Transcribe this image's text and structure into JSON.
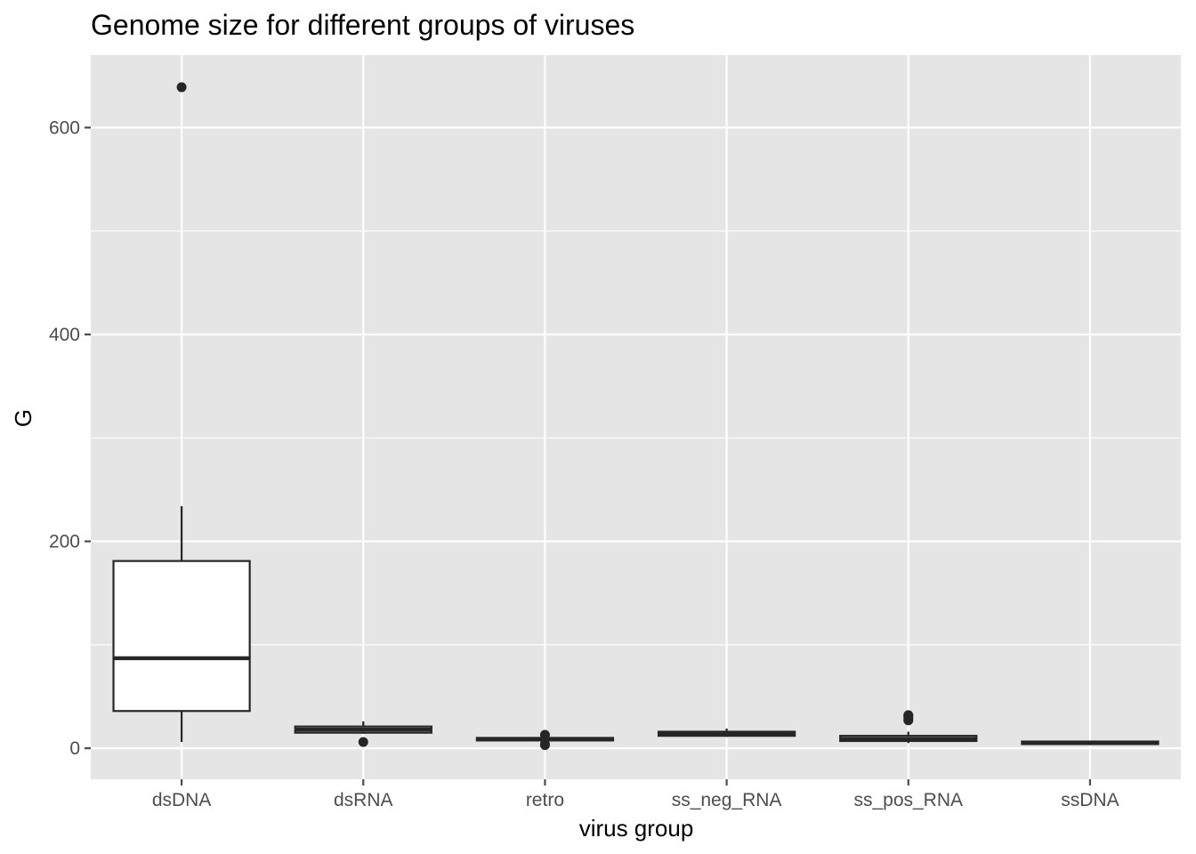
{
  "chart_data": {
    "type": "boxplot",
    "title": "Genome size for different groups of viruses",
    "xlabel": "virus group",
    "ylabel": "G",
    "ylim": [
      -30,
      670
    ],
    "yticks": [
      0,
      200,
      400,
      600
    ],
    "grid": true,
    "legend": "none",
    "categories": [
      "dsDNA",
      "dsRNA",
      "retro",
      "ss_neg_RNA",
      "ss_pos_RNA",
      "ssDNA"
    ],
    "boxes": [
      {
        "category": "dsDNA",
        "whisker_low": 6,
        "q1": 36,
        "median": 87,
        "q3": 181,
        "whisker_high": 234,
        "outliers": [
          639
        ]
      },
      {
        "category": "dsRNA",
        "whisker_low": 14,
        "q1": 15,
        "median": 18,
        "q3": 21,
        "whisker_high": 26,
        "outliers": [
          6
        ]
      },
      {
        "category": "retro",
        "whisker_low": 7,
        "q1": 7.5,
        "median": 9,
        "q3": 10,
        "whisker_high": 11,
        "outliers": [
          3,
          4,
          13
        ]
      },
      {
        "category": "ss_neg_RNA",
        "whisker_low": 11,
        "q1": 12,
        "median": 14,
        "q3": 16,
        "whisker_high": 19,
        "outliers": []
      },
      {
        "category": "ss_pos_RNA",
        "whisker_low": 5,
        "q1": 7,
        "median": 9,
        "q3": 12,
        "whisker_high": 16,
        "outliers": [
          27,
          29,
          31,
          32
        ]
      },
      {
        "category": "ssDNA",
        "whisker_low": 3,
        "q1": 4,
        "median": 5,
        "q3": 6.5,
        "whisker_high": 7,
        "outliers": []
      }
    ],
    "colors": {
      "panel": "#e5e5e5",
      "grid": "#ffffff",
      "box_fill": "#ffffff",
      "box_line": "#262626",
      "tick": "#4d4d4d"
    }
  }
}
